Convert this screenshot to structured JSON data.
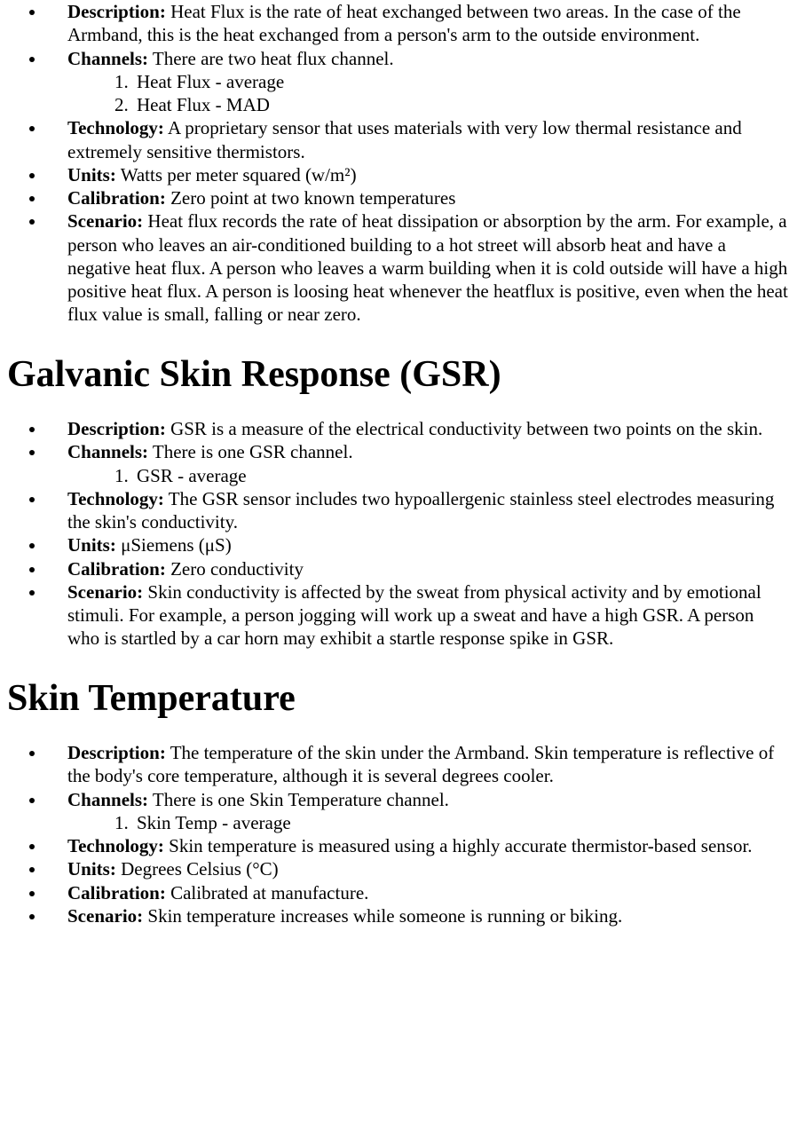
{
  "sections": [
    {
      "items": [
        {
          "label": "Description:",
          "text": " Heat Flux is the rate of heat exchanged between two areas. In the case of the Armband, this is the heat exchanged from a person's arm to the outside environment."
        },
        {
          "label": "Channels:",
          "text": " There are two heat flux channel.",
          "list": [
            "Heat Flux - average",
            "Heat Flux - MAD"
          ]
        },
        {
          "label": "Technology:",
          "text": " A proprietary sensor that uses materials with very low thermal resistance and extremely sensitive thermistors."
        },
        {
          "label": "Units:",
          "text": " Watts per meter squared (w/m²)"
        },
        {
          "label": "Calibration:",
          "text": " Zero point at two known temperatures"
        },
        {
          "label": "Scenario:",
          "text": " Heat flux records the rate of heat dissipation or absorption by the arm. For example, a person who leaves an air-conditioned building to a hot street will absorb heat and have a negative heat flux. A person who leaves a warm building when it is cold outside will have a high positive heat flux. A person is loosing heat whenever the heatflux is positive, even when the heat flux value is small, falling or near zero."
        }
      ]
    },
    {
      "heading": "Galvanic Skin Response (GSR)",
      "items": [
        {
          "label": "Description:",
          "text": " GSR is a measure of the electrical conductivity between two points on the skin."
        },
        {
          "label": "Channels:",
          "text": " There is one GSR channel.",
          "list": [
            "GSR - average"
          ]
        },
        {
          "label": "Technology:",
          "text": " The GSR sensor includes two hypoallergenic stainless steel electrodes measuring the skin's conductivity."
        },
        {
          "label": "Units:",
          "text": " μSiemens (μS)"
        },
        {
          "label": "Calibration:",
          "text": " Zero conductivity"
        },
        {
          "label": "Scenario:",
          "text": " Skin conductivity is affected by the sweat from physical activity and by emotional stimuli. For example, a person jogging will work up a sweat and have a high GSR. A person who is startled by a car horn may exhibit a startle response spike in GSR."
        }
      ]
    },
    {
      "heading": "Skin Temperature",
      "items": [
        {
          "label": "Description:",
          "text": " The temperature of the skin under the Armband. Skin temperature is reflective of the body's core temperature, although it is several degrees cooler."
        },
        {
          "label": "Channels:",
          "text": " There is one Skin Temperature channel.",
          "list": [
            "Skin Temp - average"
          ]
        },
        {
          "label": "Technology:",
          "text": " Skin temperature is measured using a highly accurate thermistor-based sensor."
        },
        {
          "label": "Units:",
          "text": " Degrees Celsius (°C)"
        },
        {
          "label": "Calibration:",
          "text": " Calibrated at manufacture."
        },
        {
          "label": "Scenario:",
          "text": " Skin temperature increases while someone is running or biking."
        }
      ]
    }
  ]
}
